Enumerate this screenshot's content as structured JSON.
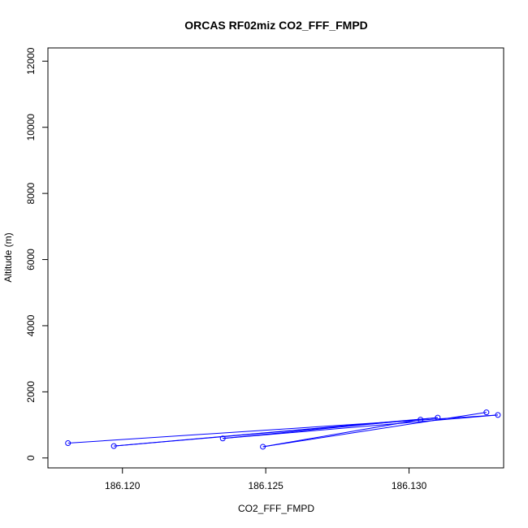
{
  "chart_data": {
    "type": "scatter",
    "title": "ORCAS RF02miz CO2_FFF_FMPD",
    "xlabel": "CO2_FFF_FMPD",
    "ylabel": "Altitude (m)",
    "xlim": [
      186.1174,
      186.1333
    ],
    "ylim": [
      -300,
      12400
    ],
    "x_ticks": [
      186.12,
      186.125,
      186.13
    ],
    "x_tick_labels": [
      "186.120",
      "186.125",
      "186.130"
    ],
    "y_ticks": [
      0,
      2000,
      4000,
      6000,
      8000,
      10000,
      12000
    ],
    "y_tick_labels": [
      "0",
      "2000",
      "4000",
      "6000",
      "8000",
      "10000",
      "12000"
    ],
    "series": [
      {
        "color": "#0000ff",
        "marker": "open-circle",
        "connected": true,
        "points": [
          {
            "x": 186.1181,
            "y": 450
          },
          {
            "x": 186.1331,
            "y": 1300
          },
          {
            "x": 186.1235,
            "y": 590
          },
          {
            "x": 186.131,
            "y": 1220
          },
          {
            "x": 186.1197,
            "y": 360
          },
          {
            "x": 186.1304,
            "y": 1160
          },
          {
            "x": 186.1249,
            "y": 340
          },
          {
            "x": 186.1327,
            "y": 1380
          }
        ]
      }
    ],
    "grid": false,
    "legend": "none"
  }
}
